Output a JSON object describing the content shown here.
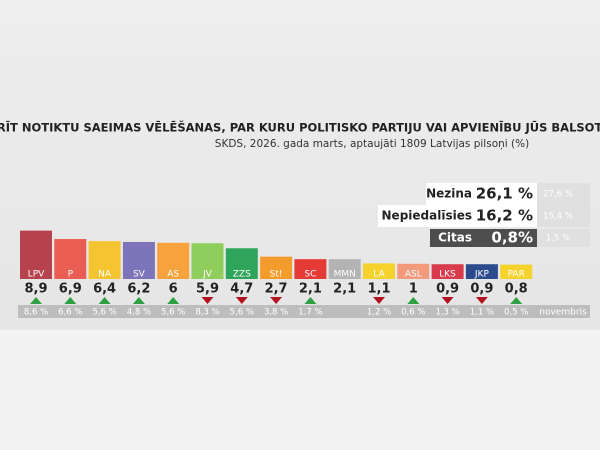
{
  "chart_data": {
    "type": "bar",
    "title": "JA RĪT NOTIKTU SAEIMAS VĒLĒŠANAS, PAR KURU POLITISKO PARTIJU VAI APVIENĪBU JŪS BALSOTU?",
    "subtitle": "SKDS, 2026. gada marts, aptaujāti 1809 Latvijas pilsoņi (%)",
    "categories": [
      "LPV",
      "P",
      "NA",
      "SV",
      "AS",
      "JV",
      "ZZS",
      "St!",
      "SC",
      "MMN",
      "LA",
      "ASL",
      "LKS",
      "JKP",
      "PAR"
    ],
    "values": [
      8.9,
      6.9,
      6.4,
      6.2,
      6,
      5.9,
      4.7,
      2.7,
      2.1,
      2.1,
      1.1,
      1,
      0.9,
      0.9,
      0.8
    ],
    "value_labels": [
      "8,9",
      "6,9",
      "6,4",
      "6,2",
      "6",
      "5,9",
      "4,7",
      "2,7",
      "2,1",
      "2,1",
      "1,1",
      "1",
      "0,9",
      "0,9",
      "0,8"
    ],
    "colors": [
      "#b5424d",
      "#ea5d52",
      "#f4c431",
      "#7d74b9",
      "#f6a23d",
      "#8fcd5c",
      "#2ea55b",
      "#f39b2b",
      "#e63a36",
      "#b3b3b3",
      "#f6d22c",
      "#f19a7c",
      "#d83b4b",
      "#2b4b8c",
      "#f6d22c"
    ],
    "previous": {
      "name": "novembris",
      "values": [
        8.6,
        6.6,
        5.6,
        4.8,
        5.6,
        8.3,
        5.6,
        3.8,
        1.7,
        null,
        1.2,
        0.6,
        1.3,
        1.1,
        0.5
      ],
      "value_labels": [
        "8,6 %",
        "6,6 %",
        "5,6 %",
        "4,8 %",
        "5,6 %",
        "8,3 %",
        "5,6 %",
        "3,8 %",
        "1,7 %",
        null,
        "1,2 %",
        "0,6 %",
        "1,3 %",
        "1,1 %",
        "0,5 %"
      ]
    },
    "others": [
      {
        "label": "Nezina",
        "value": 26.1,
        "value_label": "26,1 %",
        "previous": 27.6,
        "previous_label": "27,6 %"
      },
      {
        "label": "Nepiedalīsies",
        "value": 16.2,
        "value_label": "16,2 %",
        "previous": 15.4,
        "previous_label": "15,4 %"
      },
      {
        "label": "Citas",
        "value": 0.8,
        "value_label": "0,8%",
        "previous": 1.5,
        "previous_label": "1,5 %"
      }
    ]
  }
}
